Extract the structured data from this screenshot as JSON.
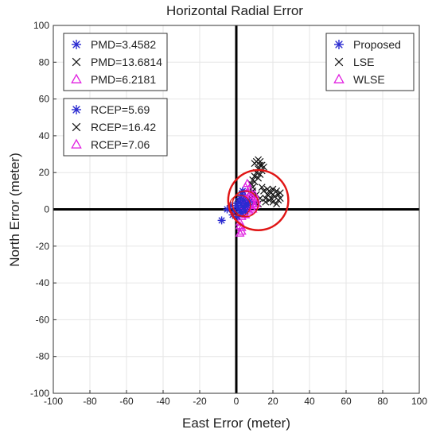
{
  "chart_data": {
    "type": "scatter",
    "title": "Horizontal Radial Error",
    "xlabel": "East Error (meter)",
    "ylabel": "North Error (meter)",
    "xlim": [
      -100,
      100
    ],
    "ylim": [
      -100,
      100
    ],
    "xticks": [
      -100,
      -80,
      -60,
      -40,
      -20,
      0,
      20,
      40,
      60,
      80,
      100
    ],
    "yticks": [
      -100,
      -80,
      -60,
      -40,
      -20,
      0,
      20,
      40,
      60,
      80,
      100
    ],
    "grid": true,
    "colors": {
      "proposed": "#2b2bd0",
      "lse": "#111111",
      "wlse": "#e020e0",
      "circle": "#e01515"
    },
    "series": [
      {
        "name": "Proposed",
        "marker": "asterisk",
        "color": "#2b2bd0",
        "points": [
          [
            -8,
            -6
          ],
          [
            -5,
            0
          ],
          [
            -3,
            2
          ],
          [
            -1,
            -1
          ],
          [
            0,
            2
          ],
          [
            1,
            4
          ],
          [
            1.5,
            0
          ],
          [
            2,
            6
          ],
          [
            2.5,
            3
          ],
          [
            3,
            -2
          ],
          [
            3,
            8
          ],
          [
            4,
            1
          ],
          [
            4,
            5
          ],
          [
            5,
            3
          ],
          [
            5,
            -1
          ],
          [
            6,
            2
          ],
          [
            7,
            4
          ],
          [
            3.5,
            10
          ],
          [
            -2,
            -3
          ],
          [
            0.5,
            -4
          ],
          [
            1,
            1
          ],
          [
            2,
            -1
          ]
        ]
      },
      {
        "name": "LSE",
        "marker": "x",
        "color": "#111111",
        "points": [
          [
            10,
            25
          ],
          [
            11,
            26
          ],
          [
            12,
            27
          ],
          [
            13,
            26
          ],
          [
            14,
            24
          ],
          [
            12,
            22
          ],
          [
            11,
            20
          ],
          [
            10,
            18
          ],
          [
            9,
            16
          ],
          [
            8,
            14
          ],
          [
            10,
            15
          ],
          [
            12,
            17
          ],
          [
            13,
            19
          ],
          [
            14,
            21
          ],
          [
            15,
            23
          ],
          [
            13,
            24
          ],
          [
            15,
            10
          ],
          [
            17,
            8
          ],
          [
            19,
            9
          ],
          [
            21,
            7
          ],
          [
            23,
            8
          ],
          [
            24,
            6
          ],
          [
            22,
            10
          ],
          [
            20,
            11
          ],
          [
            18,
            5
          ],
          [
            16,
            4
          ],
          [
            20,
            4
          ],
          [
            22,
            3
          ],
          [
            24,
            9
          ],
          [
            19,
            6
          ],
          [
            14,
            12
          ],
          [
            13,
            6
          ],
          [
            11,
            8
          ],
          [
            9,
            10
          ],
          [
            8,
            6
          ],
          [
            7,
            9
          ],
          [
            10,
            4
          ],
          [
            12,
            3
          ],
          [
            17,
            11
          ],
          [
            20,
            8
          ],
          [
            23,
            5
          ],
          [
            9,
            12
          ],
          [
            16,
            6
          ],
          [
            18,
            10
          ]
        ]
      },
      {
        "name": "WLSE",
        "marker": "triangle",
        "color": "#e020e0",
        "points": [
          [
            2,
            -13
          ],
          [
            3,
            -10
          ],
          [
            2,
            -7
          ],
          [
            3,
            -4
          ],
          [
            4,
            -2
          ],
          [
            4,
            1
          ],
          [
            5,
            3
          ],
          [
            5,
            6
          ],
          [
            6,
            9
          ],
          [
            5,
            12
          ],
          [
            6,
            14
          ],
          [
            7,
            11
          ],
          [
            7,
            7
          ],
          [
            8,
            4
          ],
          [
            8,
            1
          ],
          [
            9,
            3
          ],
          [
            9,
            6
          ],
          [
            10,
            2
          ],
          [
            11,
            5
          ],
          [
            10,
            8
          ],
          [
            3,
            2
          ],
          [
            4,
            5
          ],
          [
            6,
            0
          ],
          [
            7,
            -1
          ],
          [
            5,
            -3
          ],
          [
            6,
            4
          ],
          [
            8,
            7
          ],
          [
            11,
            3
          ],
          [
            9,
            0
          ],
          [
            2,
            -9
          ],
          [
            3,
            -12
          ],
          [
            4,
            8
          ],
          [
            6,
            6
          ],
          [
            7,
            2
          ]
        ]
      }
    ],
    "circles": [
      {
        "label": "RCEP",
        "value": 5.69,
        "color": "#2b2bd0"
      },
      {
        "label": "RCEP",
        "value": 16.42,
        "color": "#e01515",
        "center": [
          12,
          5
        ]
      },
      {
        "label": "RCEP",
        "value": 7.06,
        "color": "#e020e0"
      }
    ],
    "legend_pmd": [
      {
        "marker": "asterisk",
        "color": "#2b2bd0",
        "text": "PMD=3.4582"
      },
      {
        "marker": "x",
        "color": "#111111",
        "text": "PMD=13.6814"
      },
      {
        "marker": "triangle",
        "color": "#e020e0",
        "text": "PMD=6.2181"
      }
    ],
    "legend_rcep": [
      {
        "marker": "asterisk",
        "color": "#2b2bd0",
        "text": "RCEP=5.69"
      },
      {
        "marker": "x",
        "color": "#111111",
        "text": "RCEP=16.42"
      },
      {
        "marker": "triangle",
        "color": "#e020e0",
        "text": "RCEP=7.06"
      }
    ],
    "legend_series": [
      {
        "marker": "asterisk",
        "color": "#2b2bd0",
        "text": "Proposed"
      },
      {
        "marker": "x",
        "color": "#111111",
        "text": "LSE"
      },
      {
        "marker": "triangle",
        "color": "#e020e0",
        "text": "WLSE"
      }
    ]
  }
}
